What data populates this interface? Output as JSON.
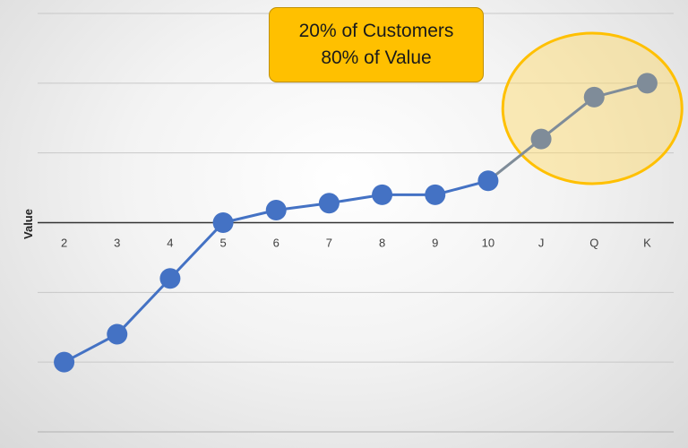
{
  "chart_data": {
    "type": "line",
    "categories": [
      "2",
      "3",
      "4",
      "5",
      "6",
      "7",
      "8",
      "9",
      "10",
      "J",
      "Q",
      "K"
    ],
    "values": [
      -2.0,
      -1.6,
      -0.8,
      0.0,
      0.18,
      0.28,
      0.4,
      0.4,
      0.6,
      1.2,
      1.8,
      2.0
    ],
    "ylabel": "Value",
    "ylim": [
      -3,
      3
    ],
    "grid": true,
    "highlighted_categories": [
      "J",
      "Q",
      "K"
    ],
    "colors": {
      "main_series": "#4472c4",
      "highlight_series": "#7f8c99",
      "highlight_circle_fill": "#ffd966",
      "highlight_circle_stroke": "#ffc000",
      "callout_fill": "#ffc000"
    }
  },
  "callout": {
    "line1": "20% of Customers",
    "line2": "80% of Value"
  }
}
